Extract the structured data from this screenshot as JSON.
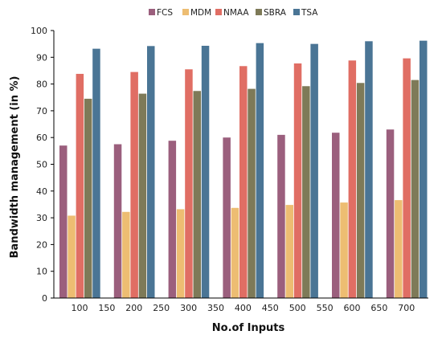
{
  "chart_data": {
    "type": "bar",
    "categories": [
      "100",
      "200",
      "300",
      "400",
      "500",
      "600",
      "700"
    ],
    "x_ticks": [
      "100",
      "150",
      "200",
      "250",
      "300",
      "350",
      "400",
      "450",
      "500",
      "550",
      "600",
      "650",
      "700"
    ],
    "series": [
      {
        "name": "FCS",
        "color": "#9b5f7d",
        "values": [
          57,
          57.5,
          58.8,
          60,
          61,
          61.8,
          63
        ]
      },
      {
        "name": "MDM",
        "color": "#edbd72",
        "values": [
          30.8,
          32.2,
          33.2,
          33.7,
          34.8,
          35.7,
          36.6
        ]
      },
      {
        "name": "NMAA",
        "color": "#e06e64",
        "values": [
          83.8,
          84.5,
          85.5,
          86.7,
          87.7,
          88.8,
          89.6
        ]
      },
      {
        "name": "SBRA",
        "color": "#7e7a58",
        "values": [
          74.5,
          76.4,
          77.4,
          78.2,
          79.2,
          80.4,
          81.5
        ]
      },
      {
        "name": "TSA",
        "color": "#4a7595",
        "values": [
          93.2,
          94.2,
          94.3,
          95.3,
          95,
          96,
          96.2
        ]
      }
    ],
    "y_ticks": [
      "0",
      "10",
      "20",
      "30",
      "40",
      "50",
      "60",
      "70",
      "80",
      "90",
      "100"
    ],
    "xlabel": "No.of Inputs",
    "ylabel": "Bandwidth management (in %)",
    "ylim": [
      0,
      100
    ],
    "grid": false,
    "legend_position": "top"
  }
}
